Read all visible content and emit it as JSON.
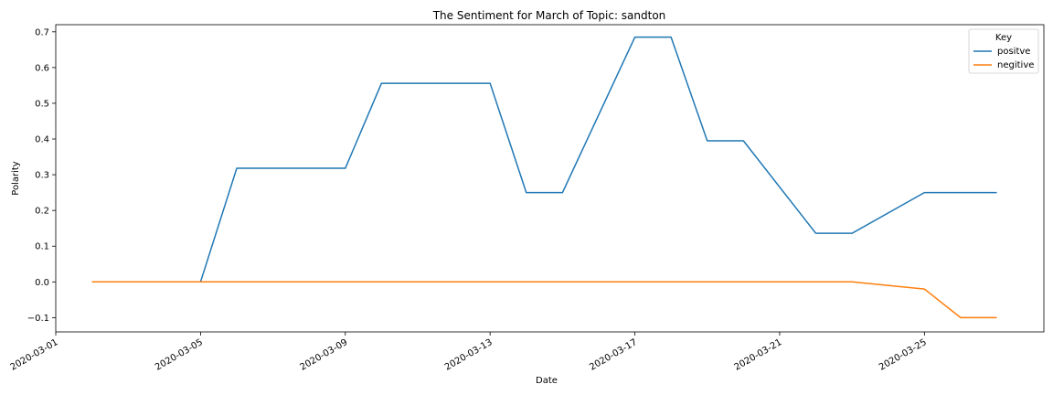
{
  "chart_data": {
    "type": "line",
    "title": "The Sentiment for March of Topic: sandton",
    "xlabel": "Date",
    "ylabel": "Polarity",
    "x_ticks": [
      "2020-03-01",
      "2020-03-05",
      "2020-03-09",
      "2020-03-13",
      "2020-03-17",
      "2020-03-21",
      "2020-03-25"
    ],
    "y_ticks": [
      "0.7",
      "0.6",
      "0.5",
      "0.4",
      "0.3",
      "0.2",
      "0.1",
      "0.0",
      "−0.1"
    ],
    "xlim": [
      "2020-03-01",
      "2020-03-28.3"
    ],
    "ylim": [
      -0.14,
      0.72
    ],
    "grid": false,
    "legend": {
      "title": "Key",
      "position": "top-right"
    },
    "series": [
      {
        "name": "positve",
        "color": "#1f77b4",
        "points": [
          [
            "2020-03-02",
            0.0
          ],
          [
            "2020-03-05",
            0.0
          ],
          [
            "2020-03-06",
            0.318
          ],
          [
            "2020-03-09",
            0.318
          ],
          [
            "2020-03-10",
            0.556
          ],
          [
            "2020-03-13",
            0.556
          ],
          [
            "2020-03-14",
            0.25
          ],
          [
            "2020-03-15",
            0.25
          ],
          [
            "2020-03-17",
            0.685
          ],
          [
            "2020-03-18",
            0.685
          ],
          [
            "2020-03-19",
            0.395
          ],
          [
            "2020-03-20",
            0.395
          ],
          [
            "2020-03-22",
            0.136
          ],
          [
            "2020-03-23",
            0.136
          ],
          [
            "2020-03-25",
            0.25
          ],
          [
            "2020-03-27",
            0.25
          ]
        ]
      },
      {
        "name": "negitive",
        "color": "#ff7f0e",
        "points": [
          [
            "2020-03-02",
            0.0
          ],
          [
            "2020-03-23",
            0.0
          ],
          [
            "2020-03-25",
            -0.02
          ],
          [
            "2020-03-26",
            -0.1
          ],
          [
            "2020-03-27",
            -0.1
          ]
        ]
      }
    ]
  }
}
